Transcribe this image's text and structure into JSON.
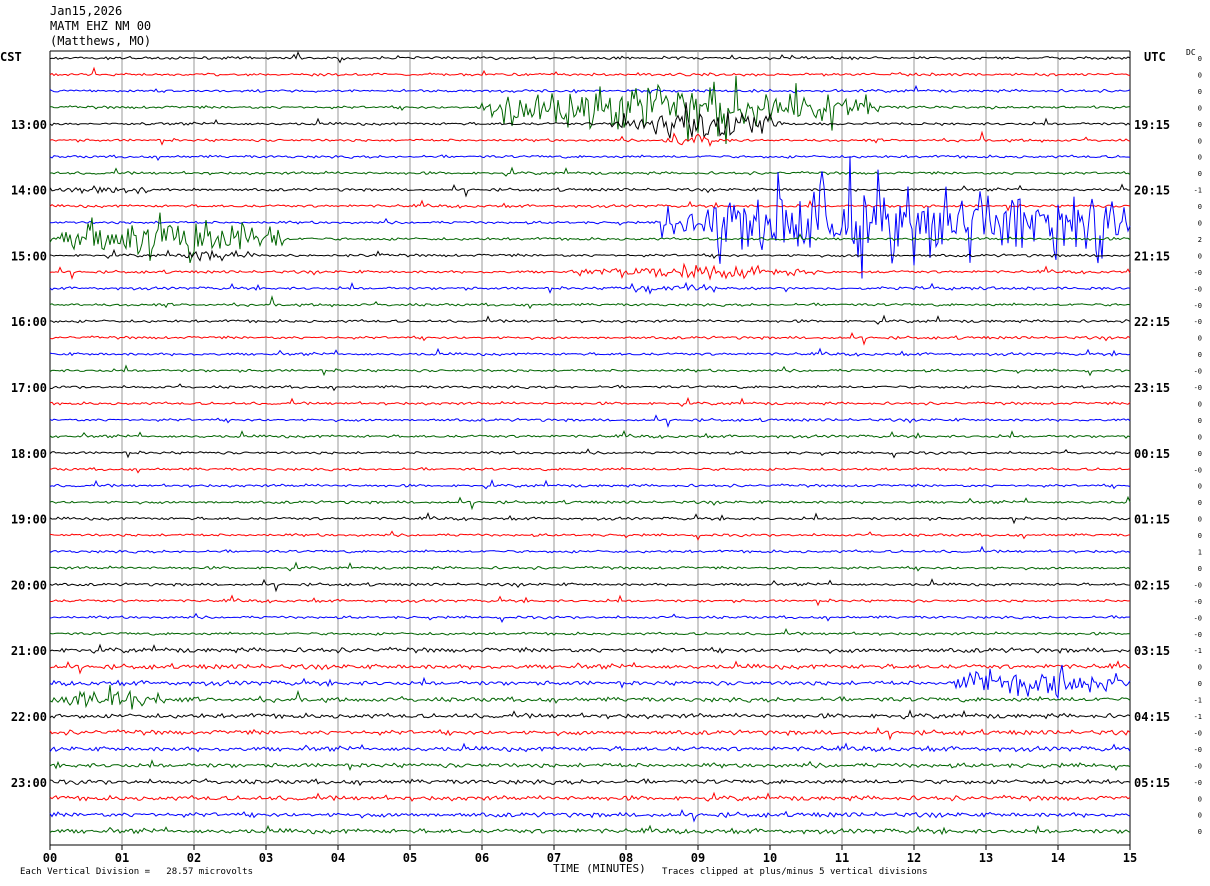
{
  "header": {
    "date": "Jan15,2026",
    "station": "MATM EHZ NM 00",
    "location": "(Matthews, MO)"
  },
  "left_axis_title": "CST",
  "right_axis_title": "UTC",
  "dc_label": "DC",
  "chart_data": {
    "type": "line",
    "subtype": "helicorder",
    "xlabel": "TIME (MINUTES)",
    "x_ticks": [
      "00",
      "01",
      "02",
      "03",
      "04",
      "05",
      "06",
      "07",
      "08",
      "09",
      "10",
      "11",
      "12",
      "13",
      "14",
      "15"
    ],
    "xlim": [
      0,
      15
    ],
    "trace_minutes": 15,
    "trace_count": 48,
    "trace_colors": [
      "#000000",
      "#ff0000",
      "#0000ff",
      "#006400"
    ],
    "left_hour_labels": [
      {
        "trace": 4,
        "label": "13:00"
      },
      {
        "trace": 8,
        "label": "14:00"
      },
      {
        "trace": 12,
        "label": "15:00"
      },
      {
        "trace": 16,
        "label": "16:00"
      },
      {
        "trace": 20,
        "label": "17:00"
      },
      {
        "trace": 24,
        "label": "18:00"
      },
      {
        "trace": 28,
        "label": "19:00"
      },
      {
        "trace": 32,
        "label": "20:00"
      },
      {
        "trace": 36,
        "label": "21:00"
      },
      {
        "trace": 40,
        "label": "22:00"
      },
      {
        "trace": 44,
        "label": "23:00"
      }
    ],
    "right_hour_labels": [
      {
        "trace": 4,
        "label": "19:15"
      },
      {
        "trace": 8,
        "label": "20:15"
      },
      {
        "trace": 12,
        "label": "21:15"
      },
      {
        "trace": 16,
        "label": "22:15"
      },
      {
        "trace": 20,
        "label": "23:15"
      },
      {
        "trace": 24,
        "label": "00:15"
      },
      {
        "trace": 28,
        "label": "01:15"
      },
      {
        "trace": 32,
        "label": "02:15"
      },
      {
        "trace": 36,
        "label": "03:15"
      },
      {
        "trace": 40,
        "label": "04:15"
      },
      {
        "trace": 44,
        "label": "05:15"
      }
    ],
    "dc_offsets": [
      "0",
      "0",
      "0",
      "0",
      "0",
      "0",
      "0",
      "0",
      "-1",
      "0",
      "0",
      "2",
      "0",
      "-0",
      "-0",
      "-0",
      "-0",
      "0",
      "0",
      "-0",
      "-0",
      "0",
      "0",
      "0",
      "0",
      "-0",
      "0",
      "0",
      "0",
      "0",
      "1",
      "0",
      "-0",
      "-0",
      "-0",
      "-0",
      "-1",
      "0",
      "0",
      "-1",
      "-1",
      "-0",
      "-0",
      "-0",
      "-0",
      "0",
      "0",
      "0"
    ],
    "events": [
      {
        "trace": 3,
        "start": 6.0,
        "end": 11.5,
        "amp": 38
      },
      {
        "trace": 4,
        "start": 7.8,
        "end": 10.2,
        "amp": 22
      },
      {
        "trace": 5,
        "start": 8.5,
        "end": 9.2,
        "amp": 10
      },
      {
        "trace": 8,
        "start": 0.0,
        "end": 1.4,
        "amp": 7
      },
      {
        "trace": 10,
        "start": 8.5,
        "end": 15.0,
        "amp": 60
      },
      {
        "trace": 11,
        "start": 0.0,
        "end": 3.3,
        "amp": 30
      },
      {
        "trace": 12,
        "start": 1.7,
        "end": 2.9,
        "amp": 7
      },
      {
        "trace": 13,
        "start": 7.2,
        "end": 10.8,
        "amp": 9
      },
      {
        "trace": 14,
        "start": 7.7,
        "end": 9.3,
        "amp": 6
      },
      {
        "trace": 38,
        "start": 12.5,
        "end": 15.0,
        "amp": 20
      },
      {
        "trace": 39,
        "start": 0.0,
        "end": 1.6,
        "amp": 14
      }
    ],
    "legend": "none"
  },
  "footer": {
    "scale": "Each Vertical Division =   28.57 microvolts",
    "clip_note": "Traces clipped at plus/minus 5 vertical divisions"
  }
}
